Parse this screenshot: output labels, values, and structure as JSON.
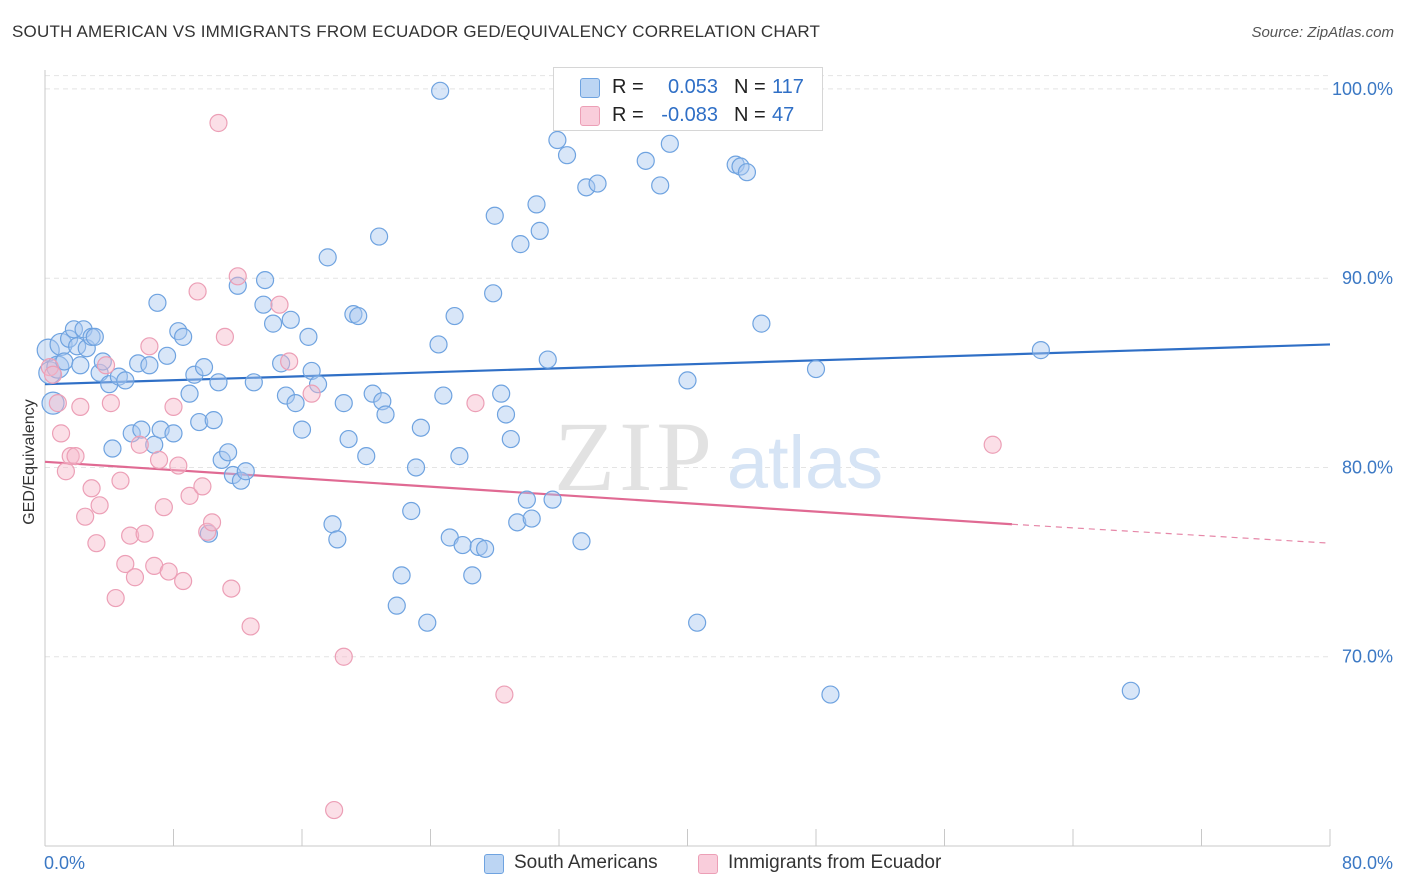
{
  "title": "SOUTH AMERICAN VS IMMIGRANTS FROM ECUADOR GED/EQUIVALENCY CORRELATION CHART",
  "source": "Source: ZipAtlas.com",
  "watermark": {
    "zip": "ZIP",
    "atlas": "atlas"
  },
  "legend": {
    "rows": [
      {
        "r_label": "R =",
        "r_value": "0.053",
        "n_label": "N =",
        "n_value": "117",
        "color": "#a8c8f0"
      },
      {
        "r_label": "R =",
        "r_value": "-0.083",
        "n_label": "N =",
        "n_value": "47",
        "color": "#f6b8ca"
      }
    ]
  },
  "bottom_legend": [
    {
      "label": "South Americans",
      "color": "#a8c8f0"
    },
    {
      "label": "Immigrants from Ecuador",
      "color": "#f6b8ca"
    }
  ],
  "chart_data": {
    "type": "scatter",
    "title": "SOUTH AMERICAN VS IMMIGRANTS FROM ECUADOR GED/EQUIVALENCY CORRELATION CHART",
    "xlabel": "",
    "ylabel": "GED/Equivalency",
    "xlim": [
      0,
      80
    ],
    "ylim": [
      60,
      101
    ],
    "x_tick_labels": [
      "0.0%",
      "80.0%"
    ],
    "y_ticks": [
      70,
      80,
      90,
      100
    ],
    "y_tick_labels": [
      "70.0%",
      "80.0%",
      "90.0%",
      "100.0%"
    ],
    "grid": true,
    "legend_placement": "top-center",
    "series": [
      {
        "name": "South Americans",
        "color": "#6fa3e0",
        "fill": "#a8c8f0",
        "trend": {
          "x": [
            0,
            80
          ],
          "y": [
            84.4,
            86.5
          ],
          "color": "#2f6fc6"
        },
        "points": [
          [
            0.2,
            86.2
          ],
          [
            0.3,
            85.0
          ],
          [
            0.5,
            83.4
          ],
          [
            0.8,
            85.3
          ],
          [
            1.0,
            86.5
          ],
          [
            1.2,
            85.6
          ],
          [
            1.5,
            86.8
          ],
          [
            1.8,
            87.3
          ],
          [
            2.0,
            86.4
          ],
          [
            2.2,
            85.4
          ],
          [
            2.4,
            87.3
          ],
          [
            2.6,
            86.3
          ],
          [
            2.9,
            86.9
          ],
          [
            3.1,
            86.9
          ],
          [
            3.4,
            85.0
          ],
          [
            3.6,
            85.6
          ],
          [
            4.0,
            84.4
          ],
          [
            4.2,
            81.0
          ],
          [
            4.6,
            84.8
          ],
          [
            5.0,
            84.6
          ],
          [
            5.4,
            81.8
          ],
          [
            5.8,
            85.5
          ],
          [
            6.0,
            82.0
          ],
          [
            6.5,
            85.4
          ],
          [
            6.8,
            81.2
          ],
          [
            7.0,
            88.7
          ],
          [
            7.2,
            82.0
          ],
          [
            7.6,
            85.9
          ],
          [
            8.0,
            81.8
          ],
          [
            8.3,
            87.2
          ],
          [
            8.6,
            86.9
          ],
          [
            9.0,
            83.9
          ],
          [
            9.3,
            84.9
          ],
          [
            9.6,
            82.4
          ],
          [
            9.9,
            85.3
          ],
          [
            10.2,
            76.5
          ],
          [
            10.5,
            82.5
          ],
          [
            10.8,
            84.5
          ],
          [
            11.0,
            80.4
          ],
          [
            11.4,
            80.8
          ],
          [
            11.7,
            79.6
          ],
          [
            12.0,
            89.6
          ],
          [
            12.2,
            79.3
          ],
          [
            12.5,
            79.8
          ],
          [
            13.0,
            84.5
          ],
          [
            13.6,
            88.6
          ],
          [
            13.7,
            89.9
          ],
          [
            14.2,
            87.6
          ],
          [
            14.7,
            85.5
          ],
          [
            15.0,
            83.8
          ],
          [
            15.3,
            87.8
          ],
          [
            15.6,
            83.4
          ],
          [
            16.0,
            82.0
          ],
          [
            16.4,
            86.9
          ],
          [
            16.6,
            85.1
          ],
          [
            17.0,
            84.4
          ],
          [
            17.6,
            91.1
          ],
          [
            17.9,
            77.0
          ],
          [
            18.2,
            76.2
          ],
          [
            18.6,
            83.4
          ],
          [
            18.9,
            81.5
          ],
          [
            19.2,
            88.1
          ],
          [
            19.5,
            88.0
          ],
          [
            20.0,
            80.6
          ],
          [
            20.4,
            83.9
          ],
          [
            20.8,
            92.2
          ],
          [
            21.0,
            83.5
          ],
          [
            21.2,
            82.8
          ],
          [
            21.9,
            72.7
          ],
          [
            22.2,
            74.3
          ],
          [
            22.8,
            77.7
          ],
          [
            23.1,
            80.0
          ],
          [
            23.4,
            82.1
          ],
          [
            23.8,
            71.8
          ],
          [
            24.5,
            86.5
          ],
          [
            24.8,
            83.8
          ],
          [
            25.2,
            76.3
          ],
          [
            25.5,
            88.0
          ],
          [
            25.8,
            80.6
          ],
          [
            26.0,
            75.9
          ],
          [
            26.6,
            74.3
          ],
          [
            27.0,
            75.8
          ],
          [
            27.4,
            75.7
          ],
          [
            27.9,
            89.2
          ],
          [
            28.0,
            93.3
          ],
          [
            28.4,
            83.9
          ],
          [
            28.7,
            82.8
          ],
          [
            29.0,
            81.5
          ],
          [
            29.4,
            77.1
          ],
          [
            29.6,
            91.8
          ],
          [
            30.0,
            78.3
          ],
          [
            30.3,
            77.3
          ],
          [
            30.6,
            93.9
          ],
          [
            30.8,
            92.5
          ],
          [
            31.3,
            85.7
          ],
          [
            31.6,
            78.3
          ],
          [
            31.9,
            97.3
          ],
          [
            32.5,
            96.5
          ],
          [
            33.4,
            76.1
          ],
          [
            33.7,
            94.8
          ],
          [
            34.4,
            95.0
          ],
          [
            35.0,
            100.1
          ],
          [
            37.4,
            96.2
          ],
          [
            38.3,
            94.9
          ],
          [
            38.9,
            97.1
          ],
          [
            39.0,
            99.8
          ],
          [
            40.0,
            84.6
          ],
          [
            40.6,
            71.8
          ],
          [
            43.0,
            96.0
          ],
          [
            43.3,
            95.9
          ],
          [
            43.7,
            95.6
          ],
          [
            44.6,
            87.6
          ],
          [
            48.0,
            85.2
          ],
          [
            48.9,
            68.0
          ],
          [
            62.0,
            86.2
          ],
          [
            67.6,
            68.2
          ],
          [
            24.6,
            99.9
          ]
        ]
      },
      {
        "name": "Immigrants from Ecuador",
        "color": "#ec9fb6",
        "fill": "#f6b8ca",
        "trend": {
          "x": [
            0,
            60.2
          ],
          "y": [
            80.3,
            77.0
          ],
          "color": "#e06a93",
          "dashed_to": {
            "x": 80,
            "y": 76.0
          }
        },
        "points": [
          [
            0.3,
            85.3
          ],
          [
            0.5,
            84.9
          ],
          [
            0.8,
            83.4
          ],
          [
            1.0,
            81.8
          ],
          [
            1.3,
            79.8
          ],
          [
            1.6,
            80.6
          ],
          [
            1.9,
            80.6
          ],
          [
            2.2,
            83.2
          ],
          [
            2.5,
            77.4
          ],
          [
            2.9,
            78.9
          ],
          [
            3.2,
            76.0
          ],
          [
            3.4,
            78.0
          ],
          [
            3.8,
            85.4
          ],
          [
            4.1,
            83.4
          ],
          [
            4.4,
            73.1
          ],
          [
            4.7,
            79.3
          ],
          [
            5.0,
            74.9
          ],
          [
            5.3,
            76.4
          ],
          [
            5.6,
            74.2
          ],
          [
            5.9,
            81.2
          ],
          [
            6.2,
            76.5
          ],
          [
            6.5,
            86.4
          ],
          [
            6.8,
            74.8
          ],
          [
            7.1,
            80.4
          ],
          [
            7.4,
            77.9
          ],
          [
            7.7,
            74.5
          ],
          [
            8.0,
            83.2
          ],
          [
            8.3,
            80.1
          ],
          [
            8.6,
            74.0
          ],
          [
            9.0,
            78.5
          ],
          [
            9.5,
            89.3
          ],
          [
            9.8,
            79.0
          ],
          [
            10.1,
            76.6
          ],
          [
            10.4,
            77.1
          ],
          [
            10.8,
            98.2
          ],
          [
            11.2,
            86.9
          ],
          [
            11.6,
            73.6
          ],
          [
            12.0,
            90.1
          ],
          [
            12.8,
            71.6
          ],
          [
            14.6,
            88.6
          ],
          [
            15.2,
            85.6
          ],
          [
            16.6,
            83.9
          ],
          [
            18.0,
            61.9
          ],
          [
            18.6,
            70.0
          ],
          [
            26.8,
            83.4
          ],
          [
            28.6,
            68.0
          ],
          [
            59.0,
            81.2
          ]
        ]
      }
    ]
  }
}
